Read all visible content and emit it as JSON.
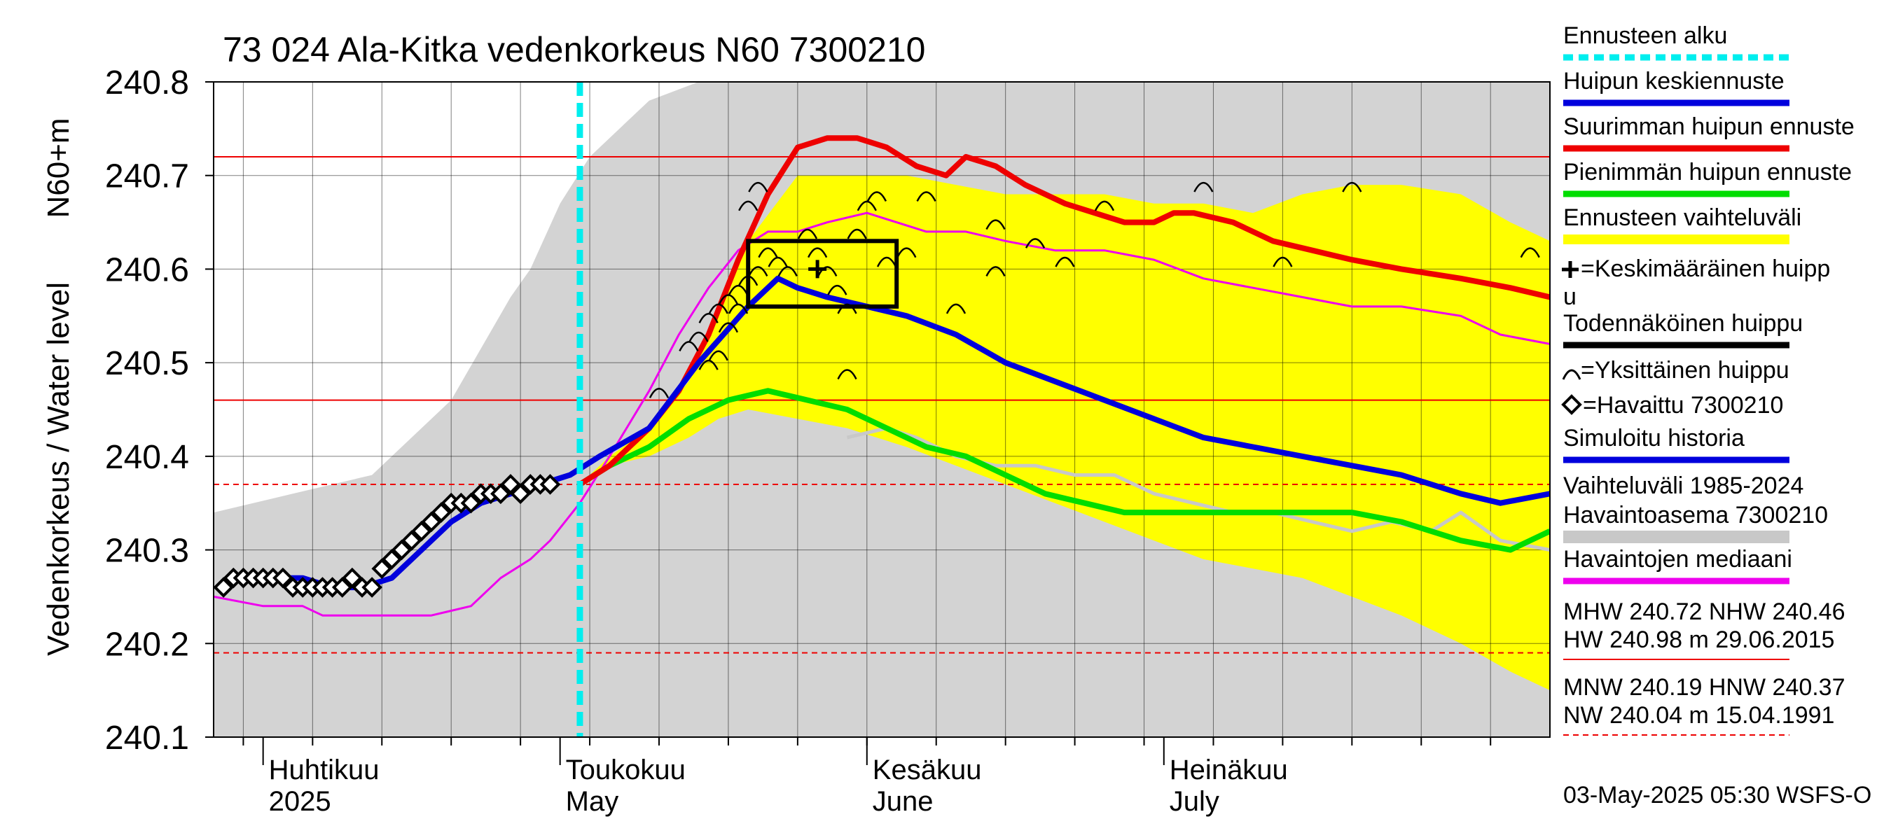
{
  "chart_data": {
    "type": "line",
    "title": "73 024 Ala-Kitka vedenkorkeus N60 7300210",
    "ylabel_main": "Vedenkorkeus / Water level",
    "ylabel_unit": "N60+m",
    "ylim": [
      240.1,
      240.8
    ],
    "yticks": [
      240.1,
      240.2,
      240.3,
      240.4,
      240.5,
      240.6,
      240.7,
      240.8
    ],
    "ytick_labels": [
      "240.1",
      "240.2",
      "240.3",
      "240.4",
      "240.5",
      "240.6",
      "240.7",
      "240.8"
    ],
    "xlim": [
      "2025-03-27",
      "2025-08-09"
    ],
    "month_ticks": [
      {
        "date": "2025-04-01",
        "line1": "Huhtikuu",
        "line2": "2025"
      },
      {
        "date": "2025-05-01",
        "line1": "Toukokuu",
        "line2": "May"
      },
      {
        "date": "2025-06-01",
        "line1": "Kesäkuu",
        "line2": "June"
      },
      {
        "date": "2025-07-01",
        "line1": "Heinäkuu",
        "line2": "July"
      }
    ],
    "grid": true,
    "forecast_start": "2025-05-03",
    "reference_lines": {
      "MHW": 240.72,
      "NHW": 240.46,
      "HNW": 240.37,
      "MNW": 240.19
    },
    "history_band": {
      "x": [
        "2025-03-27",
        "2025-04-04",
        "2025-04-12",
        "2025-04-20",
        "2025-04-26",
        "2025-04-28",
        "2025-05-01",
        "2025-05-04",
        "2025-05-06",
        "2025-05-10",
        "2025-05-15",
        "2025-05-20",
        "2025-05-25",
        "2025-05-30",
        "2025-06-05",
        "2025-06-10",
        "2025-06-20",
        "2025-06-30",
        "2025-07-10",
        "2025-07-20",
        "2025-07-31",
        "2025-08-09"
      ],
      "upper": [
        240.34,
        240.36,
        240.38,
        240.46,
        240.57,
        240.6,
        240.67,
        240.72,
        240.74,
        240.78,
        240.8,
        240.8,
        240.8,
        240.8,
        240.8,
        240.8,
        240.8,
        240.8,
        240.8,
        240.8,
        240.8,
        240.8
      ],
      "lower": [
        240.1,
        240.1,
        240.1,
        240.1,
        240.1,
        240.1,
        240.1,
        240.1,
        240.1,
        240.1,
        240.1,
        240.1,
        240.1,
        240.1,
        240.1,
        240.1,
        240.1,
        240.1,
        240.1,
        240.1,
        240.1,
        240.1
      ]
    },
    "forecast_band": {
      "x": [
        "2025-05-03",
        "2025-05-06",
        "2025-05-10",
        "2025-05-14",
        "2025-05-17",
        "2025-05-20",
        "2025-05-25",
        "2025-05-30",
        "2025-06-05",
        "2025-06-10",
        "2025-06-15",
        "2025-06-20",
        "2025-06-25",
        "2025-06-30",
        "2025-07-05",
        "2025-07-10",
        "2025-07-15",
        "2025-07-20",
        "2025-07-25",
        "2025-07-31",
        "2025-08-05",
        "2025-08-09"
      ],
      "upper": [
        240.37,
        240.4,
        240.43,
        240.48,
        240.55,
        240.63,
        240.7,
        240.7,
        240.7,
        240.69,
        240.68,
        240.68,
        240.68,
        240.67,
        240.67,
        240.66,
        240.68,
        240.69,
        240.69,
        240.68,
        240.65,
        240.63
      ],
      "lower": [
        240.37,
        240.39,
        240.4,
        240.42,
        240.44,
        240.45,
        240.44,
        240.43,
        240.41,
        240.39,
        240.37,
        240.35,
        240.33,
        240.31,
        240.29,
        240.28,
        240.27,
        240.25,
        240.23,
        240.2,
        240.17,
        240.15
      ]
    },
    "series": [
      {
        "name": "Huipun keskiennuste",
        "color": "#0000dd",
        "x": [
          "2025-04-02",
          "2025-04-05",
          "2025-04-08",
          "2025-04-11",
          "2025-04-14",
          "2025-04-17",
          "2025-04-20",
          "2025-04-23",
          "2025-04-26",
          "2025-04-29",
          "2025-05-02",
          "2025-05-05",
          "2025-05-10",
          "2025-05-15",
          "2025-05-20",
          "2025-05-23",
          "2025-05-25",
          "2025-05-28",
          "2025-06-01",
          "2025-06-05",
          "2025-06-10",
          "2025-06-15",
          "2025-06-20",
          "2025-06-25",
          "2025-06-30",
          "2025-07-05",
          "2025-07-10",
          "2025-07-15",
          "2025-07-20",
          "2025-07-25",
          "2025-07-31",
          "2025-08-04",
          "2025-08-09"
        ],
        "y": [
          240.27,
          240.27,
          240.26,
          240.26,
          240.27,
          240.3,
          240.33,
          240.35,
          240.36,
          240.37,
          240.38,
          240.4,
          240.43,
          240.5,
          240.56,
          240.59,
          240.58,
          240.57,
          240.56,
          240.55,
          240.53,
          240.5,
          240.48,
          240.46,
          240.44,
          240.42,
          240.41,
          240.4,
          240.39,
          240.38,
          240.36,
          240.35,
          240.36
        ]
      },
      {
        "name": "Suurimman huipun ennuste",
        "color": "#ee0000",
        "x": [
          "2025-05-03",
          "2025-05-06",
          "2025-05-10",
          "2025-05-13",
          "2025-05-16",
          "2025-05-19",
          "2025-05-22",
          "2025-05-25",
          "2025-05-28",
          "2025-05-31",
          "2025-06-03",
          "2025-06-06",
          "2025-06-09",
          "2025-06-11",
          "2025-06-14",
          "2025-06-17",
          "2025-06-21",
          "2025-06-24",
          "2025-06-27",
          "2025-06-30",
          "2025-07-02",
          "2025-07-04",
          "2025-07-08",
          "2025-07-12",
          "2025-07-16",
          "2025-07-20",
          "2025-07-25",
          "2025-07-31",
          "2025-08-05",
          "2025-08-09"
        ],
        "y": [
          240.37,
          240.39,
          240.43,
          240.47,
          240.53,
          240.61,
          240.68,
          240.73,
          240.74,
          240.74,
          240.73,
          240.71,
          240.7,
          240.72,
          240.71,
          240.69,
          240.67,
          240.66,
          240.65,
          240.65,
          240.66,
          240.66,
          240.65,
          240.63,
          240.62,
          240.61,
          240.6,
          240.59,
          240.58,
          240.57
        ]
      },
      {
        "name": "Pienimmän huipun ennuste",
        "color": "#00dd00",
        "x": [
          "2025-05-03",
          "2025-05-06",
          "2025-05-10",
          "2025-05-14",
          "2025-05-18",
          "2025-05-22",
          "2025-05-26",
          "2025-05-30",
          "2025-06-03",
          "2025-06-07",
          "2025-06-11",
          "2025-06-15",
          "2025-06-19",
          "2025-06-23",
          "2025-06-27",
          "2025-07-01",
          "2025-07-05",
          "2025-07-10",
          "2025-07-15",
          "2025-07-20",
          "2025-07-25",
          "2025-07-31",
          "2025-08-05",
          "2025-08-09"
        ],
        "y": [
          240.37,
          240.39,
          240.41,
          240.44,
          240.46,
          240.47,
          240.46,
          240.45,
          240.43,
          240.41,
          240.4,
          240.38,
          240.36,
          240.35,
          240.34,
          240.34,
          240.34,
          240.34,
          240.34,
          240.34,
          240.33,
          240.31,
          240.3,
          240.32
        ]
      },
      {
        "name": "Havaintojen mediaani",
        "color": "#ee00ee",
        "x": [
          "2025-03-27",
          "2025-04-01",
          "2025-04-05",
          "2025-04-07",
          "2025-04-10",
          "2025-04-14",
          "2025-04-18",
          "2025-04-22",
          "2025-04-25",
          "2025-04-28",
          "2025-04-30",
          "2025-05-03",
          "2025-05-06",
          "2025-05-10",
          "2025-05-13",
          "2025-05-16",
          "2025-05-19",
          "2025-05-22",
          "2025-05-25",
          "2025-05-28",
          "2025-06-01",
          "2025-06-04",
          "2025-06-07",
          "2025-06-11",
          "2025-06-15",
          "2025-06-20",
          "2025-06-25",
          "2025-06-30",
          "2025-07-05",
          "2025-07-10",
          "2025-07-15",
          "2025-07-20",
          "2025-07-25",
          "2025-07-31",
          "2025-08-04",
          "2025-08-09"
        ],
        "y": [
          240.25,
          240.24,
          240.24,
          240.23,
          240.23,
          240.23,
          240.23,
          240.24,
          240.27,
          240.29,
          240.31,
          240.35,
          240.4,
          240.47,
          240.53,
          240.58,
          240.62,
          240.64,
          240.64,
          240.65,
          240.66,
          240.65,
          240.64,
          240.64,
          240.63,
          240.62,
          240.62,
          240.61,
          240.59,
          240.58,
          240.57,
          240.56,
          240.56,
          240.55,
          240.53,
          240.52
        ]
      },
      {
        "name": "Havaintoasema 7300210",
        "color": "#c8c8c8",
        "x": [
          "2025-05-30",
          "2025-06-03",
          "2025-06-06",
          "2025-06-10",
          "2025-06-14",
          "2025-06-18",
          "2025-06-22",
          "2025-06-26",
          "2025-06-30",
          "2025-07-04",
          "2025-07-08",
          "2025-07-12",
          "2025-07-16",
          "2025-07-20",
          "2025-07-24",
          "2025-07-28",
          "2025-07-31",
          "2025-08-04",
          "2025-08-09"
        ],
        "y": [
          240.42,
          240.43,
          240.42,
          240.4,
          240.39,
          240.39,
          240.38,
          240.38,
          240.36,
          240.35,
          240.34,
          240.34,
          240.33,
          240.32,
          240.33,
          240.32,
          240.34,
          240.31,
          240.3
        ]
      }
    ],
    "observed": {
      "name": "Havaittu 7300210",
      "x": [
        "2025-03-28",
        "2025-03-29",
        "2025-03-30",
        "2025-03-31",
        "2025-04-01",
        "2025-04-02",
        "2025-04-03",
        "2025-04-04",
        "2025-04-05",
        "2025-04-06",
        "2025-04-07",
        "2025-04-08",
        "2025-04-09",
        "2025-04-10",
        "2025-04-11",
        "2025-04-12",
        "2025-04-13",
        "2025-04-14",
        "2025-04-15",
        "2025-04-16",
        "2025-04-17",
        "2025-04-18",
        "2025-04-19",
        "2025-04-20",
        "2025-04-21",
        "2025-04-22",
        "2025-04-23",
        "2025-04-24",
        "2025-04-25",
        "2025-04-26",
        "2025-04-27",
        "2025-04-28",
        "2025-04-29",
        "2025-04-30"
      ],
      "y": [
        240.26,
        240.27,
        240.27,
        240.27,
        240.27,
        240.27,
        240.27,
        240.26,
        240.26,
        240.26,
        240.26,
        240.26,
        240.26,
        240.27,
        240.26,
        240.26,
        240.28,
        240.29,
        240.3,
        240.31,
        240.32,
        240.33,
        240.34,
        240.35,
        240.35,
        240.35,
        240.36,
        240.36,
        240.36,
        240.37,
        240.36,
        240.37,
        240.37,
        240.37
      ]
    },
    "individual_peaks": {
      "x": [
        "2025-05-14",
        "2025-05-15",
        "2025-05-16",
        "2025-05-17",
        "2025-05-18",
        "2025-05-19",
        "2025-05-16",
        "2025-05-17",
        "2025-05-18",
        "2025-05-19",
        "2025-05-20",
        "2025-05-21",
        "2025-05-22",
        "2025-05-23",
        "2025-05-24",
        "2025-05-26",
        "2025-05-27",
        "2025-05-28",
        "2025-05-29",
        "2025-05-30",
        "2025-05-31",
        "2025-06-01",
        "2025-06-02",
        "2025-06-03",
        "2025-06-05",
        "2025-06-07",
        "2025-06-10",
        "2025-06-14",
        "2025-06-14",
        "2025-06-18",
        "2025-06-21",
        "2025-06-25",
        "2025-07-05",
        "2025-07-13",
        "2025-07-20",
        "2025-08-07",
        "2025-05-11",
        "2025-05-30",
        "2025-05-20",
        "2025-05-21"
      ],
      "y": [
        240.52,
        240.53,
        240.55,
        240.56,
        240.57,
        240.58,
        240.5,
        240.51,
        240.54,
        240.56,
        240.59,
        240.6,
        240.62,
        240.61,
        240.6,
        240.64,
        240.62,
        240.6,
        240.58,
        240.56,
        240.64,
        240.67,
        240.68,
        240.61,
        240.62,
        240.68,
        240.56,
        240.65,
        240.6,
        240.63,
        240.61,
        240.67,
        240.69,
        240.61,
        240.69,
        240.62,
        240.47,
        240.49,
        240.67,
        240.69
      ]
    },
    "mean_peak": {
      "x": "2025-05-27",
      "y": 240.6
    },
    "probable_peak_box": {
      "x0": "2025-05-20",
      "x1": "2025-06-04",
      "y0": 240.56,
      "y1": 240.63
    }
  },
  "legend": {
    "items": [
      {
        "label": "Ennusteen alku",
        "color": "#00eeee",
        "style": "dashed"
      },
      {
        "label": "Huipun keskiennuste",
        "color": "#0000dd",
        "style": "solid"
      },
      {
        "label": "Suurimman huipun ennuste",
        "color": "#ee0000",
        "style": "solid"
      },
      {
        "label": "Pienimmän huipun ennuste",
        "color": "#00dd00",
        "style": "solid"
      },
      {
        "label": "Ennusteen vaihteluväli",
        "color": "#ffff00",
        "style": "solid"
      },
      {
        "label": "=Keskimääräinen huipp",
        "label2": "u",
        "symbol": "plus"
      },
      {
        "label": "Todennäköinen huippu",
        "color": "#000000",
        "style": "solid"
      },
      {
        "label": "=Yksittäinen huippu",
        "symbol": "arc"
      },
      {
        "label": "=Havaittu 7300210",
        "symbol": "diamond"
      },
      {
        "label": "Simuloitu historia",
        "color": "#0000dd",
        "style": "solid"
      },
      {
        "label": "Vaihteluväli 1985-2024",
        "label2": " Havaintoasema 7300210",
        "color": "#c8c8c8",
        "style": "solid"
      },
      {
        "label": "Havaintojen mediaani",
        "color": "#ee00ee",
        "style": "solid"
      }
    ]
  },
  "stats": {
    "line1": "MHW 240.72 NHW 240.46",
    "line2": "HW 240.98 m 29.06.2015",
    "line3": "MNW 240.19 HNW 240.37",
    "line4": "NW 240.04 m 15.04.1991"
  },
  "footer": "03-May-2025 05:30 WSFS-O"
}
